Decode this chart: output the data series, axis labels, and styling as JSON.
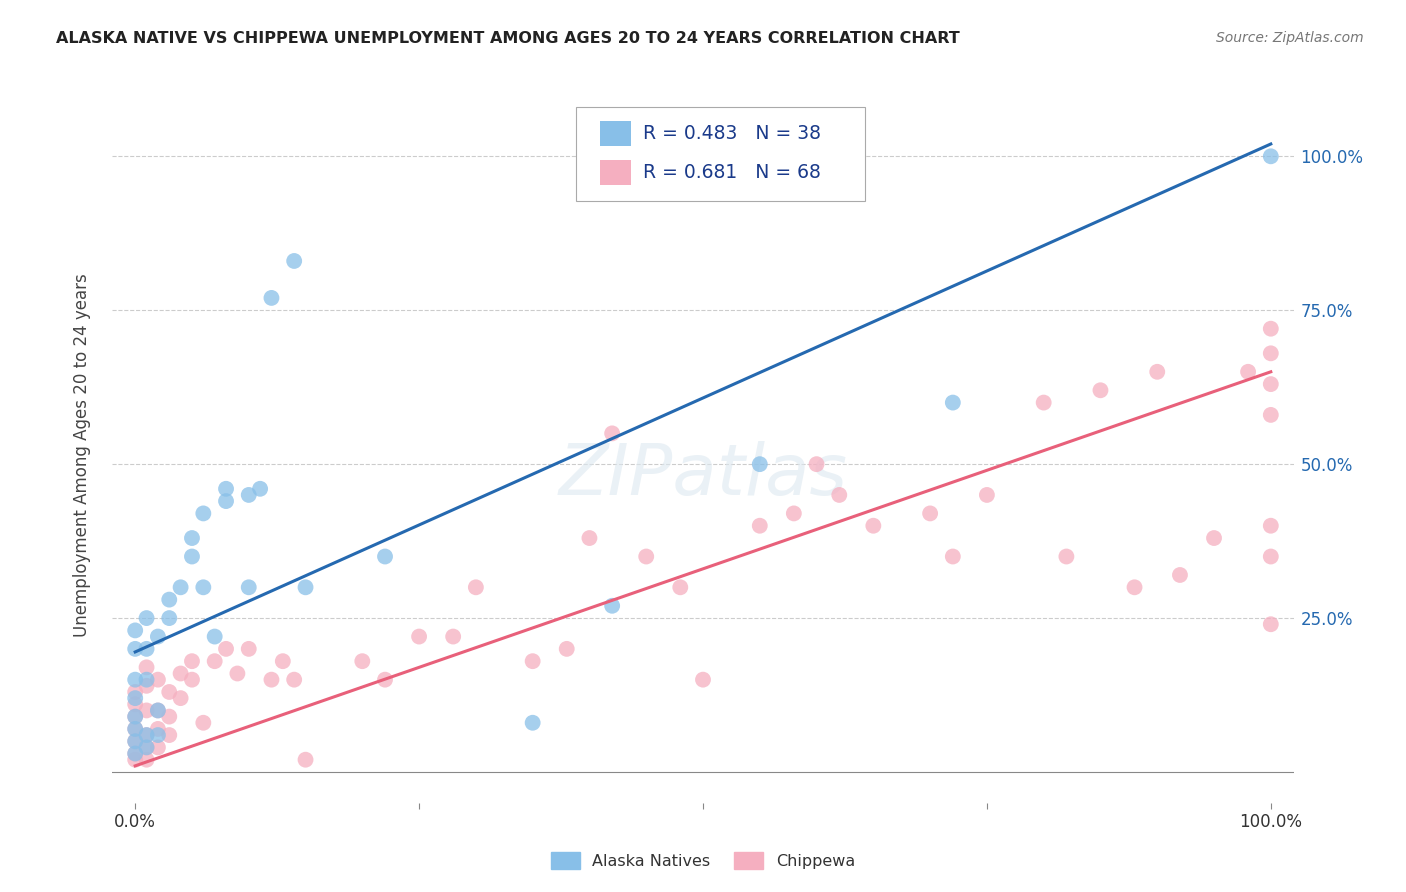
{
  "title": "ALASKA NATIVE VS CHIPPEWA UNEMPLOYMENT AMONG AGES 20 TO 24 YEARS CORRELATION CHART",
  "source": "Source: ZipAtlas.com",
  "ylabel": "Unemployment Among Ages 20 to 24 years",
  "xlim": [
    -0.02,
    1.02
  ],
  "ylim": [
    -0.05,
    1.08
  ],
  "xticks": [
    0.0,
    0.25,
    0.5,
    0.75,
    1.0
  ],
  "xticklabels": [
    "0.0%",
    "",
    "",
    "",
    "100.0%"
  ],
  "right_ytick_vals": [
    0.25,
    0.5,
    0.75,
    1.0
  ],
  "right_yticklabels": [
    "25.0%",
    "50.0%",
    "75.0%",
    "100.0%"
  ],
  "alaska_color": "#88bfe8",
  "chippewa_color": "#f5afc0",
  "alaska_line_color": "#2569b0",
  "chippewa_line_color": "#e8607a",
  "alaska_R": 0.483,
  "alaska_N": 38,
  "chippewa_R": 0.681,
  "chippewa_N": 68,
  "legend_text_color": "#1a3a8a",
  "right_tick_color": "#2569b0",
  "background_color": "#ffffff",
  "grid_color": "#cccccc",
  "alaska_line_x0": 0.0,
  "alaska_line_y0": 0.195,
  "alaska_line_x1": 1.0,
  "alaska_line_y1": 1.02,
  "chippewa_line_x0": 0.0,
  "chippewa_line_y0": 0.01,
  "chippewa_line_x1": 1.0,
  "chippewa_line_y1": 0.65,
  "alaska_x": [
    0.0,
    0.0,
    0.0,
    0.0,
    0.0,
    0.0,
    0.0,
    0.0,
    0.01,
    0.01,
    0.01,
    0.01,
    0.01,
    0.02,
    0.02,
    0.02,
    0.03,
    0.03,
    0.04,
    0.05,
    0.05,
    0.06,
    0.06,
    0.07,
    0.08,
    0.08,
    0.1,
    0.1,
    0.11,
    0.12,
    0.14,
    0.15,
    0.22,
    0.35,
    0.42,
    0.55,
    0.72,
    1.0
  ],
  "alaska_y": [
    0.03,
    0.05,
    0.07,
    0.09,
    0.12,
    0.15,
    0.2,
    0.23,
    0.04,
    0.06,
    0.15,
    0.2,
    0.25,
    0.06,
    0.1,
    0.22,
    0.25,
    0.28,
    0.3,
    0.35,
    0.38,
    0.3,
    0.42,
    0.22,
    0.44,
    0.46,
    0.3,
    0.45,
    0.46,
    0.77,
    0.83,
    0.3,
    0.35,
    0.08,
    0.27,
    0.5,
    0.6,
    1.0
  ],
  "chippewa_x": [
    0.0,
    0.0,
    0.0,
    0.0,
    0.0,
    0.0,
    0.0,
    0.01,
    0.01,
    0.01,
    0.01,
    0.01,
    0.01,
    0.02,
    0.02,
    0.02,
    0.02,
    0.03,
    0.03,
    0.03,
    0.04,
    0.04,
    0.05,
    0.05,
    0.06,
    0.07,
    0.08,
    0.09,
    0.1,
    0.12,
    0.13,
    0.14,
    0.15,
    0.2,
    0.22,
    0.25,
    0.28,
    0.3,
    0.35,
    0.38,
    0.4,
    0.42,
    0.45,
    0.48,
    0.5,
    0.55,
    0.58,
    0.6,
    0.62,
    0.65,
    0.7,
    0.72,
    0.75,
    0.8,
    0.82,
    0.85,
    0.88,
    0.9,
    0.92,
    0.95,
    0.98,
    1.0,
    1.0,
    1.0,
    1.0,
    1.0,
    1.0,
    1.0
  ],
  "chippewa_y": [
    0.02,
    0.03,
    0.05,
    0.07,
    0.09,
    0.11,
    0.13,
    0.02,
    0.04,
    0.06,
    0.1,
    0.14,
    0.17,
    0.04,
    0.07,
    0.1,
    0.15,
    0.06,
    0.09,
    0.13,
    0.12,
    0.16,
    0.15,
    0.18,
    0.08,
    0.18,
    0.2,
    0.16,
    0.2,
    0.15,
    0.18,
    0.15,
    0.02,
    0.18,
    0.15,
    0.22,
    0.22,
    0.3,
    0.18,
    0.2,
    0.38,
    0.55,
    0.35,
    0.3,
    0.15,
    0.4,
    0.42,
    0.5,
    0.45,
    0.4,
    0.42,
    0.35,
    0.45,
    0.6,
    0.35,
    0.62,
    0.3,
    0.65,
    0.32,
    0.38,
    0.65,
    0.58,
    0.63,
    0.68,
    0.72,
    0.35,
    0.4,
    0.24
  ]
}
